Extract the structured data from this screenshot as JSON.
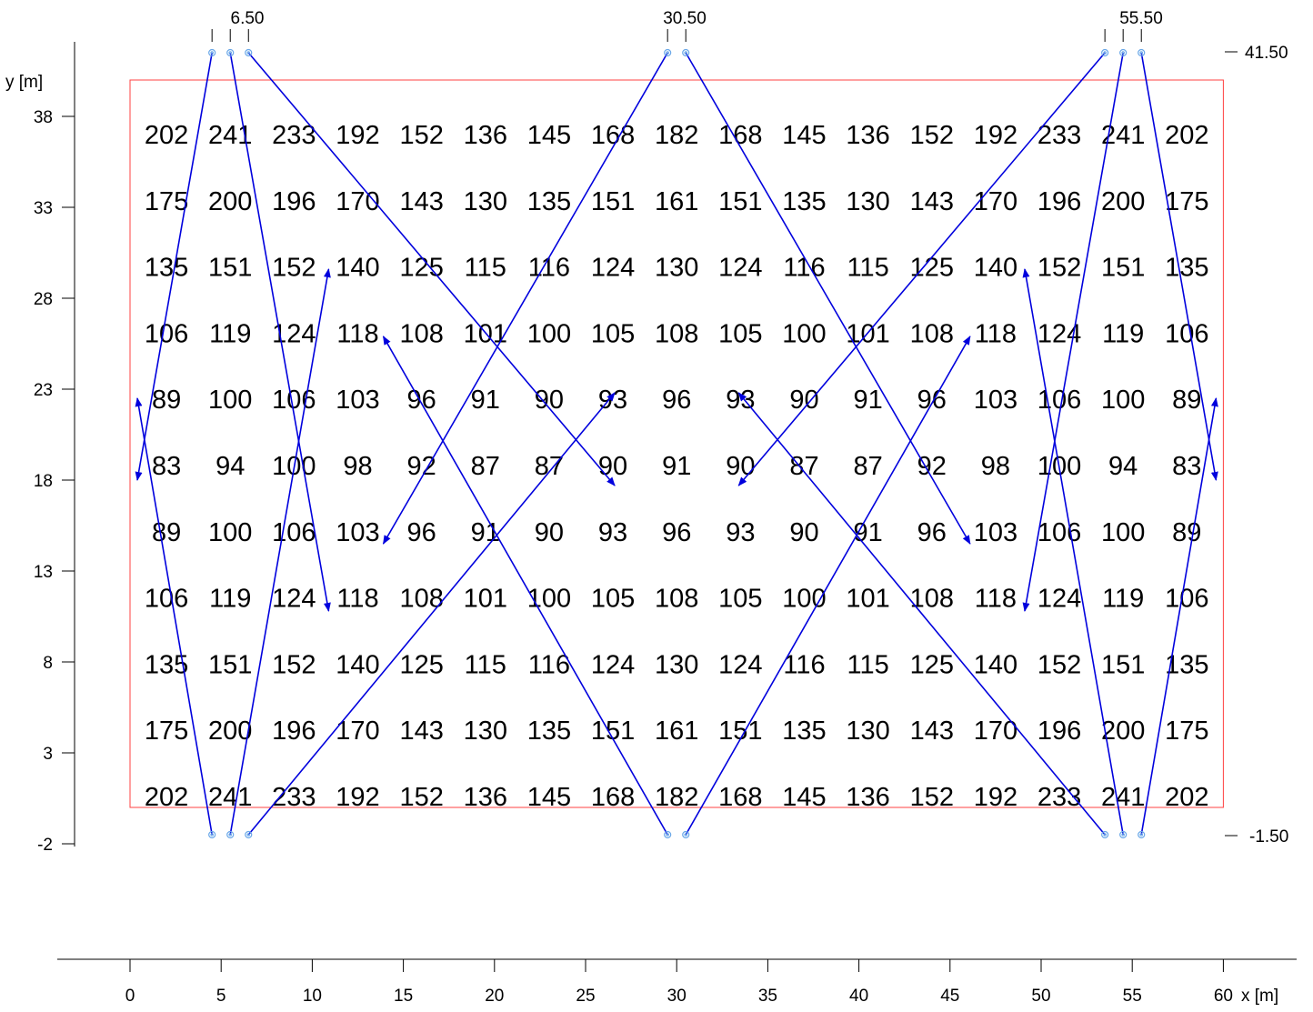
{
  "x_axis": {
    "title": "x [m]",
    "ticks": [
      0,
      5,
      10,
      15,
      20,
      25,
      30,
      35,
      40,
      45,
      50,
      55,
      60
    ]
  },
  "y_axis": {
    "title": "y [m]",
    "ticks": [
      -2,
      3,
      8,
      13,
      18,
      23,
      28,
      33,
      38
    ]
  },
  "top_markers": [
    "6.50",
    "30.50",
    "55.50"
  ],
  "right_markers": [
    "41.50",
    "-1.50"
  ],
  "colors": {
    "min_value": "#cc0000",
    "max_value": "#00cc00",
    "normal_value": "#000000",
    "beam": "#0000dd",
    "area": "#ff4040"
  },
  "chart_data": {
    "type": "table",
    "x_positions": [
      2,
      5.5,
      9,
      12.5,
      16,
      19.5,
      23,
      26.5,
      30,
      33.5,
      37,
      40.5,
      44,
      47.5,
      51,
      54.5,
      58
    ],
    "y_positions": [
      36.5,
      32.86,
      29.22,
      25.58,
      21.94,
      18.3,
      14.66,
      11.02,
      7.38,
      3.74,
      0.1
    ],
    "rows": [
      [
        "202",
        "241",
        "233",
        "192",
        "152",
        "136",
        "145",
        "168",
        "182",
        "168",
        "145",
        "136",
        "152",
        "192",
        "233",
        "241",
        "202"
      ],
      [
        "175",
        "200",
        "196",
        "170",
        "143",
        "130",
        "135",
        "151",
        "161",
        "151",
        "135",
        "130",
        "143",
        "170",
        "196",
        "200",
        "175"
      ],
      [
        "135",
        "151",
        "152",
        "140",
        "125",
        "115",
        "116",
        "124",
        "130",
        "124",
        "116",
        "115",
        "125",
        "140",
        "152",
        "151",
        "135"
      ],
      [
        "106",
        "119",
        "124",
        "118",
        "108",
        "101",
        "100",
        "105",
        "108",
        "105",
        "100",
        "101",
        "108",
        "118",
        "124",
        "119",
        "106"
      ],
      [
        "89",
        "100",
        "106",
        "103",
        "96",
        "91",
        "90",
        "93",
        "96",
        "93",
        "90",
        "91",
        "96",
        "103",
        "106",
        "100",
        "89"
      ],
      [
        "83",
        "94",
        "100",
        "98",
        "92",
        "87",
        "87",
        "90",
        "91",
        "90",
        "87",
        "87",
        "92",
        "98",
        "100",
        "94",
        "83"
      ],
      [
        "89",
        "100",
        "106",
        "103",
        "96",
        "91",
        "90",
        "93",
        "96",
        "93",
        "90",
        "91",
        "96",
        "103",
        "106",
        "100",
        "89"
      ],
      [
        "106",
        "119",
        "124",
        "118",
        "108",
        "101",
        "100",
        "105",
        "108",
        "105",
        "100",
        "101",
        "108",
        "118",
        "124",
        "119",
        "106"
      ],
      [
        "135",
        "151",
        "152",
        "140",
        "125",
        "115",
        "116",
        "124",
        "130",
        "124",
        "116",
        "115",
        "125",
        "140",
        "152",
        "151",
        "135"
      ],
      [
        "175",
        "200",
        "196",
        "170",
        "143",
        "130",
        "135",
        "151",
        "161",
        "151",
        "135",
        "130",
        "143",
        "170",
        "196",
        "200",
        "175"
      ],
      [
        "202",
        "241",
        "233",
        "192",
        "152",
        "136",
        "145",
        "168",
        "182",
        "168",
        "145",
        "136",
        "152",
        "192",
        "233",
        "241",
        "202"
      ]
    ],
    "highlights": [
      {
        "row": 5,
        "col": 0,
        "kind": "min"
      },
      {
        "row": 5,
        "col": 16,
        "kind": "min"
      },
      {
        "row": 10,
        "col": 1,
        "kind": "max"
      }
    ],
    "area": {
      "x": [
        0,
        60
      ],
      "y": [
        0,
        40
      ]
    },
    "luminaires": [
      {
        "x": 4.5,
        "y": 41.5
      },
      {
        "x": 5.5,
        "y": 41.5
      },
      {
        "x": 6.5,
        "y": 41.5
      },
      {
        "x": 29.5,
        "y": 41.5
      },
      {
        "x": 30.5,
        "y": 41.5
      },
      {
        "x": 53.5,
        "y": 41.5
      },
      {
        "x": 54.5,
        "y": 41.5
      },
      {
        "x": 55.5,
        "y": 41.5
      },
      {
        "x": 4.5,
        "y": -1.5
      },
      {
        "x": 5.5,
        "y": -1.5
      },
      {
        "x": 6.5,
        "y": -1.5
      },
      {
        "x": 29.5,
        "y": -1.5
      },
      {
        "x": 30.5,
        "y": -1.5
      },
      {
        "x": 53.5,
        "y": -1.5
      },
      {
        "x": 54.5,
        "y": -1.5
      },
      {
        "x": 55.5,
        "y": -1.5
      }
    ],
    "aim_lines": [
      {
        "from": [
          4.5,
          41.5
        ],
        "to": [
          0.4,
          18.0
        ]
      },
      {
        "from": [
          5.5,
          41.5
        ],
        "to": [
          10.9,
          10.8
        ]
      },
      {
        "from": [
          6.5,
          41.5
        ],
        "to": [
          26.6,
          17.7
        ]
      },
      {
        "from": [
          29.5,
          41.5
        ],
        "to": [
          13.9,
          14.5
        ]
      },
      {
        "from": [
          30.5,
          41.5
        ],
        "to": [
          46.1,
          14.5
        ]
      },
      {
        "from": [
          53.5,
          41.5
        ],
        "to": [
          33.4,
          17.7
        ]
      },
      {
        "from": [
          54.5,
          41.5
        ],
        "to": [
          49.1,
          10.8
        ]
      },
      {
        "from": [
          55.5,
          41.5
        ],
        "to": [
          59.6,
          18.0
        ]
      },
      {
        "from": [
          4.5,
          -1.5
        ],
        "to": [
          0.4,
          22.5
        ]
      },
      {
        "from": [
          5.5,
          -1.5
        ],
        "to": [
          10.9,
          29.6
        ]
      },
      {
        "from": [
          6.5,
          -1.5
        ],
        "to": [
          26.6,
          22.8
        ]
      },
      {
        "from": [
          29.5,
          -1.5
        ],
        "to": [
          13.9,
          25.9
        ]
      },
      {
        "from": [
          30.5,
          -1.5
        ],
        "to": [
          46.1,
          25.9
        ]
      },
      {
        "from": [
          53.5,
          -1.5
        ],
        "to": [
          33.4,
          22.8
        ]
      },
      {
        "from": [
          54.5,
          -1.5
        ],
        "to": [
          49.1,
          29.6
        ]
      },
      {
        "from": [
          55.5,
          -1.5
        ],
        "to": [
          59.6,
          22.5
        ]
      }
    ]
  }
}
